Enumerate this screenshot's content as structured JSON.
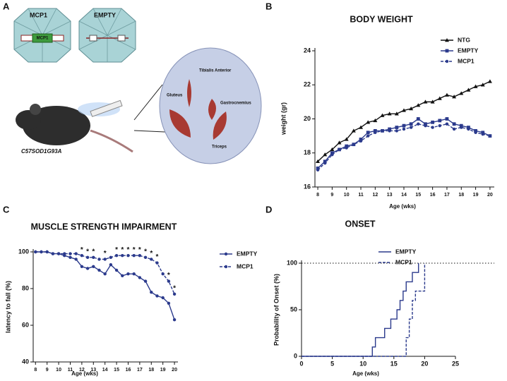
{
  "panel_labels": [
    "A",
    "B",
    "C",
    "D"
  ],
  "illustration": {
    "vectors": [
      "MCP1",
      "EMPTY"
    ],
    "gene": "MCP1",
    "mouse": "C57SOD1G93A",
    "muscles": [
      "Tibialis Anterior",
      "Gastrocnemius",
      "Gluteus",
      "Triceps"
    ]
  },
  "chart_data": [
    {
      "type": "line",
      "title": "BODY WEIGHT",
      "x_label": "Age (wks)",
      "y_label": "weight (gr)",
      "x": [
        8,
        8.5,
        9,
        9.5,
        10,
        10.5,
        11,
        11.5,
        12,
        12.5,
        13,
        13.5,
        14,
        14.5,
        15,
        15.5,
        16,
        16.5,
        17,
        17.5,
        18,
        18.5,
        19,
        19.5,
        20
      ],
      "xlim": [
        7.8,
        20.3
      ],
      "xticks": [
        8,
        9,
        10,
        11,
        12,
        13,
        14,
        15,
        16,
        17,
        18,
        19,
        20
      ],
      "ylim": [
        16,
        24
      ],
      "yticks": [
        16,
        18,
        20,
        22,
        24
      ],
      "legend": "upper right",
      "series": [
        {
          "name": "NTG",
          "color": "#111111",
          "marker": "triangle",
          "line_style": "solid",
          "values": [
            17.5,
            17.9,
            18.2,
            18.6,
            18.8,
            19.3,
            19.5,
            19.8,
            19.9,
            20.2,
            20.3,
            20.3,
            20.5,
            20.6,
            20.8,
            21.0,
            21.0,
            21.2,
            21.4,
            21.3,
            21.5,
            21.7,
            21.9,
            22.0,
            22.2
          ]
        },
        {
          "name": "EMPTY",
          "color": "#2b3a8c",
          "marker": "square",
          "line_style": "solid",
          "values": [
            17.1,
            17.5,
            18.0,
            18.2,
            18.4,
            18.5,
            18.8,
            19.2,
            19.3,
            19.3,
            19.4,
            19.5,
            19.6,
            19.7,
            20.0,
            19.7,
            19.8,
            19.9,
            20.0,
            19.7,
            19.6,
            19.5,
            19.3,
            19.2,
            19.0
          ]
        },
        {
          "name": "MCP1",
          "color": "#2b3a8c",
          "marker": "circle",
          "line_style": "dashed",
          "values": [
            17.0,
            17.4,
            17.9,
            18.2,
            18.3,
            18.5,
            18.7,
            19.0,
            19.2,
            19.3,
            19.3,
            19.3,
            19.4,
            19.5,
            19.7,
            19.6,
            19.5,
            19.6,
            19.7,
            19.4,
            19.5,
            19.4,
            19.2,
            19.1,
            19.0
          ]
        }
      ]
    },
    {
      "type": "line",
      "title": "MUSCLE STRENGTH IMPAIRMENT",
      "x_label": "Age (wks)",
      "y_label": "latency to fall (%)",
      "x": [
        8,
        8.5,
        9,
        9.5,
        10,
        10.5,
        11,
        11.5,
        12,
        12.5,
        13,
        13.5,
        14,
        14.5,
        15,
        15.5,
        16,
        16.5,
        17,
        17.5,
        18,
        18.5,
        19,
        19.5,
        20
      ],
      "xlim": [
        7.8,
        20.3
      ],
      "xticks": [
        8,
        9,
        10,
        11,
        12,
        13,
        14,
        15,
        16,
        17,
        18,
        19,
        20
      ],
      "ylim": [
        40,
        100
      ],
      "yticks": [
        40,
        60,
        80,
        100
      ],
      "legend": "right",
      "series": [
        {
          "name": "EMPTY",
          "color": "#2b3a8c",
          "marker": "circle",
          "line_style": "solid",
          "values": [
            100,
            100,
            100,
            99,
            99,
            98,
            97,
            96,
            92,
            91,
            92,
            90,
            88,
            93,
            90,
            87,
            88,
            88,
            86,
            84,
            78,
            76,
            75,
            72,
            63
          ]
        },
        {
          "name": "MCP1",
          "color": "#2b3a8c",
          "marker": "circle",
          "line_style": "dashed",
          "values": [
            100,
            100,
            100,
            99,
            99,
            99,
            99,
            99,
            98,
            97,
            97,
            96,
            96,
            97,
            98,
            98,
            98,
            98,
            98,
            97,
            96,
            94,
            88,
            84,
            77
          ]
        }
      ],
      "annotations": [
        {
          "text": "*",
          "x": 12
        },
        {
          "text": "*",
          "x": 12.5
        },
        {
          "text": "*",
          "x": 13
        },
        {
          "text": "*",
          "x": 14
        },
        {
          "text": "*",
          "x": 15
        },
        {
          "text": "*",
          "x": 15.5
        },
        {
          "text": "*",
          "x": 16
        },
        {
          "text": "*",
          "x": 16.5
        },
        {
          "text": "*",
          "x": 17
        },
        {
          "text": "*",
          "x": 17.5
        },
        {
          "text": "*",
          "x": 18
        },
        {
          "text": "*",
          "x": 18.5
        },
        {
          "text": "*",
          "x": 19.5
        },
        {
          "text": "*",
          "x": 20
        }
      ]
    },
    {
      "type": "step",
      "title": "ONSET",
      "x_label": "Age (wks)",
      "y_label": "Probability of Onset (%)",
      "xlim": [
        0,
        25
      ],
      "xticks": [
        0,
        5,
        10,
        15,
        20,
        25
      ],
      "ylim": [
        0,
        100
      ],
      "yticks": [
        0,
        50,
        100
      ],
      "hline": 100,
      "legend": "upper right",
      "series": [
        {
          "name": "EMPTY",
          "color": "#2b3a8c",
          "line_style": "solid",
          "x": [
            0,
            11.5,
            12,
            13.5,
            14.5,
            15.5,
            16,
            16.5,
            17,
            18,
            19
          ],
          "values": [
            0,
            10,
            20,
            30,
            40,
            50,
            60,
            70,
            80,
            90,
            100
          ]
        },
        {
          "name": "MCP1",
          "color": "#2b3a8c",
          "line_style": "dashed",
          "x": [
            0,
            17,
            17.5,
            18,
            18.5,
            20
          ],
          "values": [
            0,
            20,
            40,
            60,
            70,
            100
          ]
        }
      ]
    }
  ]
}
